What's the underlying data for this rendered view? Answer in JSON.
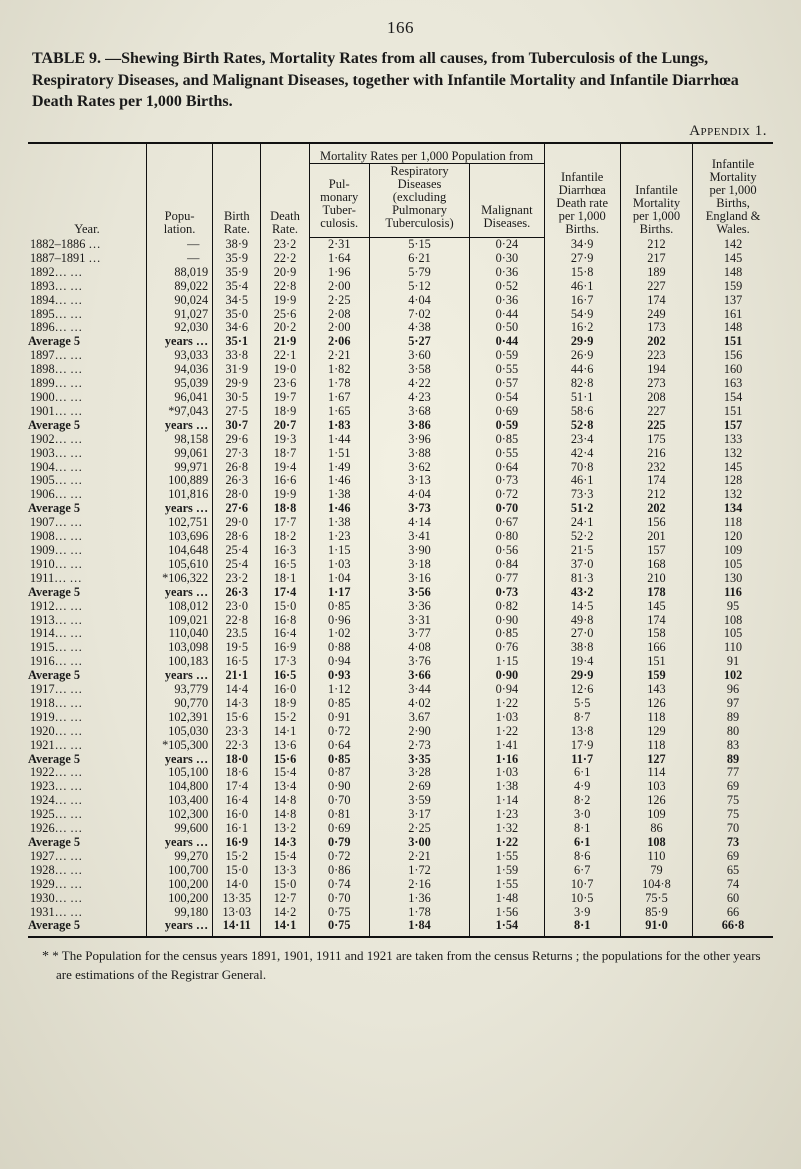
{
  "page_number": "166",
  "heading": {
    "label": "TABLE 9.",
    "title_line1": "—Shewing Birth Rates, Mortality Rates from all causes, from Tuberculosis of the Lungs, Respiratory Diseases, and Malignant Diseases, together with Infantile Mortality and Infantile Diarrhœa Death Rates per 1,000 Births."
  },
  "appendix": "Appendix 1.",
  "columns": {
    "year": "Year.",
    "pop": "Popu-\nlation.",
    "birth": "Birth\nRate.",
    "death": "Death\nRate.",
    "mort_group": "Mortality Rates per 1,000 Population from",
    "pul": "Pul-\nmonary\nTuber-\nculosis.",
    "resp": "Respiratory\nDiseases\n(excluding\nPulmonary\nTuberculosis)",
    "malig": "Malignant\nDiseases.",
    "diar": "Infantile\nDiarrhœa\nDeath rate\nper 1,000\nBirths.",
    "imort": "Infantile\nMortality\nper 1,000\nBirths.",
    "inf": "Infantile\nMortality\nper 1,000\nBirths,\nEngland &\nWales."
  },
  "rows": [
    {
      "y": "1882–1886 …",
      "avg": false,
      "pop": "—",
      "br": "38·9",
      "dr": "23·2",
      "pul": "2·31",
      "resp": "5·15",
      "mal": "0·24",
      "diar": "34·9",
      "im": "212",
      "inf": "142"
    },
    {
      "y": "1887–1891 …",
      "avg": false,
      "pop": "—",
      "br": "35·9",
      "dr": "22·2",
      "pul": "1·64",
      "resp": "6·21",
      "mal": "0·30",
      "diar": "27·9",
      "im": "217",
      "inf": "145"
    },
    {
      "y": "1892…   …",
      "avg": false,
      "pop": "88,019",
      "br": "35·9",
      "dr": "20·9",
      "pul": "1·96",
      "resp": "5·79",
      "mal": "0·36",
      "diar": "15·8",
      "im": "189",
      "inf": "148"
    },
    {
      "y": "1893…   …",
      "avg": false,
      "pop": "89,022",
      "br": "35·4",
      "dr": "22·8",
      "pul": "2·00",
      "resp": "5·12",
      "mal": "0·52",
      "diar": "46·1",
      "im": "227",
      "inf": "159"
    },
    {
      "y": "1894…   …",
      "avg": false,
      "pop": "90,024",
      "br": "34·5",
      "dr": "19·9",
      "pul": "2·25",
      "resp": "4·04",
      "mal": "0·36",
      "diar": "16·7",
      "im": "174",
      "inf": "137"
    },
    {
      "y": "1895…   …",
      "avg": false,
      "pop": "91,027",
      "br": "35·0",
      "dr": "25·6",
      "pul": "2·08",
      "resp": "7·02",
      "mal": "0·44",
      "diar": "54·9",
      "im": "249",
      "inf": "161"
    },
    {
      "y": "1896…   …",
      "avg": false,
      "pop": "92,030",
      "br": "34·6",
      "dr": "20·2",
      "pul": "2·00",
      "resp": "4·38",
      "mal": "0·50",
      "diar": "16·2",
      "im": "173",
      "inf": "148"
    },
    {
      "y": "Average 5",
      "avg": true,
      "pop": "years …",
      "br": "35·1",
      "dr": "21·9",
      "pul": "2·06",
      "resp": "5·27",
      "mal": "0·44",
      "diar": "29·9",
      "im": "202",
      "inf": "151"
    },
    {
      "y": "1897…   …",
      "avg": false,
      "pop": "93,033",
      "br": "33·8",
      "dr": "22·1",
      "pul": "2·21",
      "resp": "3·60",
      "mal": "0·59",
      "diar": "26·9",
      "im": "223",
      "inf": "156"
    },
    {
      "y": "1898…   …",
      "avg": false,
      "pop": "94,036",
      "br": "31·9",
      "dr": "19·0",
      "pul": "1·82",
      "resp": "3·58",
      "mal": "0·55",
      "diar": "44·6",
      "im": "194",
      "inf": "160"
    },
    {
      "y": "1899…   …",
      "avg": false,
      "pop": "95,039",
      "br": "29·9",
      "dr": "23·6",
      "pul": "1·78",
      "resp": "4·22",
      "mal": "0·57",
      "diar": "82·8",
      "im": "273",
      "inf": "163"
    },
    {
      "y": "1900…   …",
      "avg": false,
      "pop": "96,041",
      "br": "30·5",
      "dr": "19·7",
      "pul": "1·67",
      "resp": "4·23",
      "mal": "0·54",
      "diar": "51·1",
      "im": "208",
      "inf": "154"
    },
    {
      "y": "1901…   …",
      "avg": false,
      "pop": "*97,043",
      "br": "27·5",
      "dr": "18·9",
      "pul": "1·65",
      "resp": "3·68",
      "mal": "0·69",
      "diar": "58·6",
      "im": "227",
      "inf": "151"
    },
    {
      "y": "Average 5",
      "avg": true,
      "pop": "years …",
      "br": "30·7",
      "dr": "20·7",
      "pul": "1·83",
      "resp": "3·86",
      "mal": "0·59",
      "diar": "52·8",
      "im": "225",
      "inf": "157"
    },
    {
      "y": "1902…   …",
      "avg": false,
      "pop": "98,158",
      "br": "29·6",
      "dr": "19·3",
      "pul": "1·44",
      "resp": "3·96",
      "mal": "0·85",
      "diar": "23·4",
      "im": "175",
      "inf": "133"
    },
    {
      "y": "1903…   …",
      "avg": false,
      "pop": "99,061",
      "br": "27·3",
      "dr": "18·7",
      "pul": "1·51",
      "resp": "3·88",
      "mal": "0·55",
      "diar": "42·4",
      "im": "216",
      "inf": "132"
    },
    {
      "y": "1904…   …",
      "avg": false,
      "pop": "99,971",
      "br": "26·8",
      "dr": "19·4",
      "pul": "1·49",
      "resp": "3·62",
      "mal": "0·64",
      "diar": "70·8",
      "im": "232",
      "inf": "145"
    },
    {
      "y": "1905…   …",
      "avg": false,
      "pop": "100,889",
      "br": "26·3",
      "dr": "16·6",
      "pul": "1·46",
      "resp": "3·13",
      "mal": "0·73",
      "diar": "46·1",
      "im": "174",
      "inf": "128"
    },
    {
      "y": "1906…   …",
      "avg": false,
      "pop": "101,816",
      "br": "28·0",
      "dr": "19·9",
      "pul": "1·38",
      "resp": "4·04",
      "mal": "0·72",
      "diar": "73·3",
      "im": "212",
      "inf": "132"
    },
    {
      "y": "Average 5",
      "avg": true,
      "pop": "years …",
      "br": "27·6",
      "dr": "18·8",
      "pul": "1·46",
      "resp": "3·73",
      "mal": "0·70",
      "diar": "51·2",
      "im": "202",
      "inf": "134"
    },
    {
      "y": "1907…   …",
      "avg": false,
      "pop": "102,751",
      "br": "29·0",
      "dr": "17·7",
      "pul": "1·38",
      "resp": "4·14",
      "mal": "0·67",
      "diar": "24·1",
      "im": "156",
      "inf": "118"
    },
    {
      "y": "1908…   …",
      "avg": false,
      "pop": "103,696",
      "br": "28·6",
      "dr": "18·2",
      "pul": "1·23",
      "resp": "3·41",
      "mal": "0·80",
      "diar": "52·2",
      "im": "201",
      "inf": "120"
    },
    {
      "y": "1909…   …",
      "avg": false,
      "pop": "104,648",
      "br": "25·4",
      "dr": "16·3",
      "pul": "1·15",
      "resp": "3·90",
      "mal": "0·56",
      "diar": "21·5",
      "im": "157",
      "inf": "109"
    },
    {
      "y": "1910…   …",
      "avg": false,
      "pop": "105,610",
      "br": "25·4",
      "dr": "16·5",
      "pul": "1·03",
      "resp": "3·18",
      "mal": "0·84",
      "diar": "37·0",
      "im": "168",
      "inf": "105"
    },
    {
      "y": "1911…   …",
      "avg": false,
      "pop": "*106,322",
      "br": "23·2",
      "dr": "18·1",
      "pul": "1·04",
      "resp": "3·16",
      "mal": "0·77",
      "diar": "81·3",
      "im": "210",
      "inf": "130"
    },
    {
      "y": "Average 5",
      "avg": true,
      "pop": "years …",
      "br": "26·3",
      "dr": "17·4",
      "pul": "1·17",
      "resp": "3·56",
      "mal": "0·73",
      "diar": "43·2",
      "im": "178",
      "inf": "116"
    },
    {
      "y": "1912…   …",
      "avg": false,
      "pop": "108,012",
      "br": "23·0",
      "dr": "15·0",
      "pul": "0·85",
      "resp": "3·36",
      "mal": "0·82",
      "diar": "14·5",
      "im": "145",
      "inf": "95"
    },
    {
      "y": "1913…   …",
      "avg": false,
      "pop": "109,021",
      "br": "22·8",
      "dr": "16·8",
      "pul": "0·96",
      "resp": "3·31",
      "mal": "0·90",
      "diar": "49·8",
      "im": "174",
      "inf": "108"
    },
    {
      "y": "1914…   …",
      "avg": false,
      "pop": "110,040",
      "br": "23.5",
      "dr": "16·4",
      "pul": "1·02",
      "resp": "3·77",
      "mal": "0·85",
      "diar": "27·0",
      "im": "158",
      "inf": "105"
    },
    {
      "y": "1915…   …",
      "avg": false,
      "pop": "103,098",
      "br": "19·5",
      "dr": "16·9",
      "pul": "0·88",
      "resp": "4·08",
      "mal": "0·76",
      "diar": "38·8",
      "im": "166",
      "inf": "110"
    },
    {
      "y": "1916…   …",
      "avg": false,
      "pop": "100,183",
      "br": "16·5",
      "dr": "17·3",
      "pul": "0·94",
      "resp": "3·76",
      "mal": "1·15",
      "diar": "19·4",
      "im": "151",
      "inf": "91"
    },
    {
      "y": "Average 5",
      "avg": true,
      "pop": "years …",
      "br": "21·1",
      "dr": "16·5",
      "pul": "0·93",
      "resp": "3·66",
      "mal": "0·90",
      "diar": "29·9",
      "im": "159",
      "inf": "102"
    },
    {
      "y": "1917…   …",
      "avg": false,
      "pop": "93,779",
      "br": "14·4",
      "dr": "16·0",
      "pul": "1·12",
      "resp": "3·44",
      "mal": "0·94",
      "diar": "12·6",
      "im": "143",
      "inf": "96"
    },
    {
      "y": "1918…   …",
      "avg": false,
      "pop": "90,770",
      "br": "14·3",
      "dr": "18·9",
      "pul": "0·85",
      "resp": "4·02",
      "mal": "1·22",
      "diar": "5·5",
      "im": "126",
      "inf": "97"
    },
    {
      "y": "1919…   …",
      "avg": false,
      "pop": "102,391",
      "br": "15·6",
      "dr": "15·2",
      "pul": "0·91",
      "resp": "3.67",
      "mal": "1·03",
      "diar": "8·7",
      "im": "118",
      "inf": "89"
    },
    {
      "y": "1920…   …",
      "avg": false,
      "pop": "105,030",
      "br": "23·3",
      "dr": "14·1",
      "pul": "0·72",
      "resp": "2·90",
      "mal": "1·22",
      "diar": "13·8",
      "im": "129",
      "inf": "80"
    },
    {
      "y": "1921…   …",
      "avg": false,
      "pop": "*105,300",
      "br": "22·3",
      "dr": "13·6",
      "pul": "0·64",
      "resp": "2·73",
      "mal": "1·41",
      "diar": "17·9",
      "im": "118",
      "inf": "83"
    },
    {
      "y": "Average 5",
      "avg": true,
      "pop": "years …",
      "br": "18·0",
      "dr": "15·6",
      "pul": "0·85",
      "resp": "3·35",
      "mal": "1·16",
      "diar": "11·7",
      "im": "127",
      "inf": "89"
    },
    {
      "y": "1922…   …",
      "avg": false,
      "pop": "105,100",
      "br": "18·6",
      "dr": "15·4",
      "pul": "0·87",
      "resp": "3·28",
      "mal": "1·03",
      "diar": "6·1",
      "im": "114",
      "inf": "77"
    },
    {
      "y": "1923…   …",
      "avg": false,
      "pop": "104,800",
      "br": "17·4",
      "dr": "13·4",
      "pul": "0·90",
      "resp": "2·69",
      "mal": "1·38",
      "diar": "4·9",
      "im": "103",
      "inf": "69"
    },
    {
      "y": "1924…   …",
      "avg": false,
      "pop": "103,400",
      "br": "16·4",
      "dr": "14·8",
      "pul": "0·70",
      "resp": "3·59",
      "mal": "1·14",
      "diar": "8·2",
      "im": "126",
      "inf": "75"
    },
    {
      "y": "1925…   …",
      "avg": false,
      "pop": "102,300",
      "br": "16·0",
      "dr": "14·8",
      "pul": "0·81",
      "resp": "3·17",
      "mal": "1·23",
      "diar": "3·0",
      "im": "109",
      "inf": "75"
    },
    {
      "y": "1926…   …",
      "avg": false,
      "pop": "99,600",
      "br": "16·1",
      "dr": "13·2",
      "pul": "0·69",
      "resp": "2·25",
      "mal": "1·32",
      "diar": "8·1",
      "im": "86",
      "inf": "70"
    },
    {
      "y": "Average 5",
      "avg": true,
      "pop": "years …",
      "br": "16·9",
      "dr": "14·3",
      "pul": "0·79",
      "resp": "3·00",
      "mal": "1·22",
      "diar": "6·1",
      "im": "108",
      "inf": "73"
    },
    {
      "y": "1927…   …",
      "avg": false,
      "pop": "99,270",
      "br": "15·2",
      "dr": "15·4",
      "pul": "0·72",
      "resp": "2·21",
      "mal": "1·55",
      "diar": "8·6",
      "im": "110",
      "inf": "69"
    },
    {
      "y": "1928…   …",
      "avg": false,
      "pop": "100,700",
      "br": "15·0",
      "dr": "13·3",
      "pul": "0·86",
      "resp": "1·72",
      "mal": "1·59",
      "diar": "6·7",
      "im": "79",
      "inf": "65"
    },
    {
      "y": "1929…   …",
      "avg": false,
      "pop": "100,200",
      "br": "14·0",
      "dr": "15·0",
      "pul": "0·74",
      "resp": "2·16",
      "mal": "1·55",
      "diar": "10·7",
      "im": "104·8",
      "inf": "74"
    },
    {
      "y": "1930…   …",
      "avg": false,
      "pop": "100,200",
      "br": "13·35",
      "dr": "12·7",
      "pul": "0·70",
      "resp": "1·36",
      "mal": "1·48",
      "diar": "10·5",
      "im": "75·5",
      "inf": "60"
    },
    {
      "y": "1931…   …",
      "avg": false,
      "pop": "99,180",
      "br": "13·03",
      "dr": "14·2",
      "pul": "0·75",
      "resp": "1·78",
      "mal": "1·56",
      "diar": "3·9",
      "im": "85·9",
      "inf": "66"
    },
    {
      "y": "Average 5",
      "avg": true,
      "pop": "years …",
      "br": "14·11",
      "dr": "14·1",
      "pul": "0·75",
      "resp": "1·84",
      "mal": "1·54",
      "diar": "8·1",
      "im": "91·0",
      "inf": "66·8"
    }
  ],
  "footnote": "* The Population for the census years 1891, 1901, 1911 and 1921 are taken from the census Returns ; the populations for the other years are estimations of the Registrar General."
}
